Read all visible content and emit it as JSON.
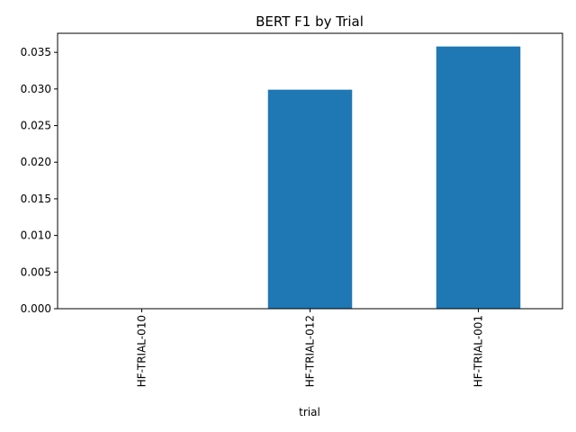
{
  "chart_data": {
    "type": "bar",
    "title": "BERT F1 by Trial",
    "xlabel": "trial",
    "ylabel": "",
    "categories": [
      "HF-TRIAL-010",
      "HF-TRIAL-012",
      "HF-TRIAL-001"
    ],
    "values": [
      0.0,
      0.0299,
      0.0358
    ],
    "ylim": [
      0,
      0.0376
    ],
    "yticks": [
      "0.000",
      "0.005",
      "0.010",
      "0.015",
      "0.020",
      "0.025",
      "0.030",
      "0.035"
    ],
    "bar_color": "#1f77b4",
    "grid": false,
    "legend": "none"
  }
}
